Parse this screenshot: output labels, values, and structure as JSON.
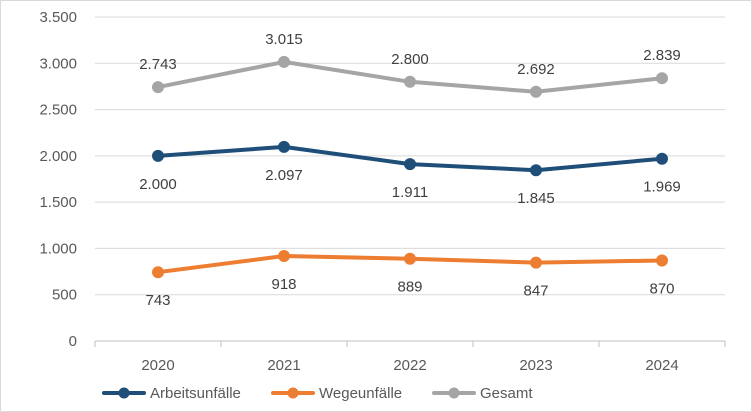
{
  "chart_data": {
    "type": "line",
    "title": "",
    "xlabel": "",
    "ylabel": "",
    "categories": [
      "2020",
      "2021",
      "2022",
      "2023",
      "2024"
    ],
    "ylim": [
      0,
      3500
    ],
    "yticks": [
      0,
      500,
      1000,
      1500,
      2000,
      2500,
      3000,
      3500
    ],
    "ytick_labels": [
      "0",
      "500",
      "1.000",
      "1.500",
      "2.000",
      "2.500",
      "3.000",
      "3.500"
    ],
    "grid": "horizontal",
    "legend_position": "bottom",
    "series": [
      {
        "name": "Arbeitsunfälle",
        "color": "#1f4e79",
        "values": [
          2000,
          2097,
          1911,
          1845,
          1969
        ],
        "labels": [
          "2.000",
          "2.097",
          "1.911",
          "1.845",
          "1.969"
        ],
        "label_position": "below"
      },
      {
        "name": "Wegeunfälle",
        "color": "#ed7d31",
        "values": [
          743,
          918,
          889,
          847,
          870
        ],
        "labels": [
          "743",
          "918",
          "889",
          "847",
          "870"
        ],
        "label_position": "below"
      },
      {
        "name": "Gesamt",
        "color": "#a5a5a5",
        "values": [
          2743,
          3015,
          2800,
          2692,
          2839
        ],
        "labels": [
          "2.743",
          "3.015",
          "2.800",
          "2.692",
          "2.839"
        ],
        "label_position": "above"
      }
    ]
  }
}
